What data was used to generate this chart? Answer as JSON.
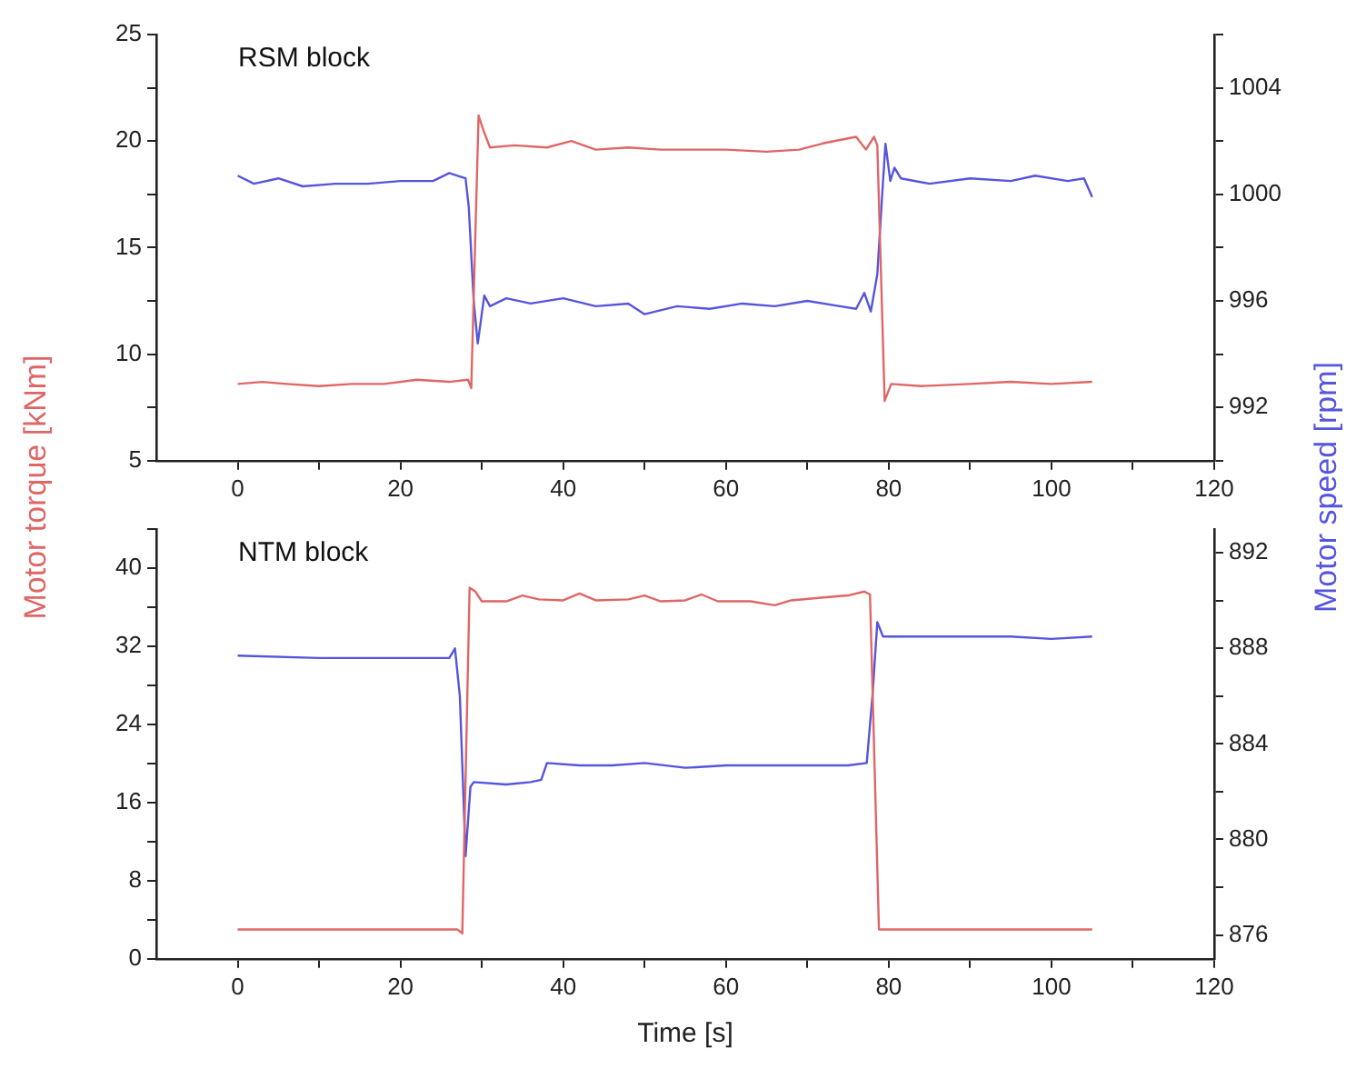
{
  "chart_data": [
    {
      "type": "line",
      "title": "RSM block",
      "xlim": [
        -10,
        120
      ],
      "xticks": [
        0,
        {
          "value": 10,
          "label": null
        },
        20,
        {
          "value": 30,
          "label": null
        },
        40,
        {
          "value": 50,
          "label": null
        },
        60,
        {
          "value": 70,
          "label": null
        },
        80,
        {
          "value": 90,
          "label": null
        },
        100,
        {
          "value": 110,
          "label": null
        },
        120
      ],
      "ylim": [
        5,
        25
      ],
      "yticks": [
        5,
        {
          "value": 7.5,
          "label": null
        },
        10,
        {
          "value": 12.5,
          "label": null
        },
        15,
        {
          "value": 17.5,
          "label": null
        },
        20,
        {
          "value": 22.5,
          "label": null
        },
        25
      ],
      "y2lim": [
        990,
        1006
      ],
      "y2ticks": [
        {
          "value": 990,
          "label": null
        },
        992,
        {
          "value": 994,
          "label": null
        },
        996,
        {
          "value": 998,
          "label": null
        },
        1000,
        {
          "value": 1002,
          "label": null
        },
        1004,
        {
          "value": 1006,
          "label": null
        }
      ],
      "grid": false,
      "marker": "none",
      "line_style": "solid",
      "series": [
        {
          "color": "#e06666",
          "axis": "y",
          "x": [
            0,
            3,
            6,
            10,
            14,
            18,
            22,
            26,
            28.3,
            28.7,
            29.6,
            30.2,
            31,
            34,
            38,
            41,
            44,
            48,
            52,
            56,
            60,
            65,
            69,
            72,
            76,
            77.2,
            78.2,
            78.6,
            79.5,
            80.3,
            84,
            90,
            95,
            100,
            105
          ],
          "values": [
            8.6,
            8.7,
            8.6,
            8.5,
            8.6,
            8.6,
            8.8,
            8.7,
            8.8,
            8.4,
            21.2,
            20.5,
            19.7,
            19.8,
            19.7,
            20.0,
            19.6,
            19.7,
            19.6,
            19.6,
            19.6,
            19.5,
            19.6,
            19.9,
            20.2,
            19.6,
            20.2,
            19.8,
            7.8,
            8.6,
            8.5,
            8.6,
            8.7,
            8.6,
            8.7
          ]
        },
        {
          "color": "#5555dd",
          "axis": "y2",
          "x": [
            0,
            2,
            5,
            8,
            12,
            16,
            20,
            24,
            26,
            28,
            28.4,
            29,
            29.5,
            30.3,
            31,
            33,
            36,
            40,
            44,
            48,
            50,
            54,
            58,
            62,
            66,
            70,
            74,
            76,
            77,
            77.8,
            78.6,
            79.2,
            79.6,
            80.2,
            80.7,
            81.5,
            85,
            90,
            95,
            98,
            102,
            104,
            105
          ],
          "values": [
            1000.7,
            1000.4,
            1000.6,
            1000.3,
            1000.4,
            1000.4,
            1000.5,
            1000.5,
            1000.8,
            1000.6,
            999.5,
            996,
            994.4,
            996.2,
            995.8,
            996.1,
            995.9,
            996.1,
            995.8,
            995.9,
            995.5,
            995.8,
            995.7,
            995.9,
            995.8,
            996,
            995.8,
            995.7,
            996.3,
            995.6,
            997,
            1000,
            1001.9,
            1000.5,
            1001,
            1000.6,
            1000.4,
            1000.6,
            1000.5,
            1000.7,
            1000.5,
            1000.6,
            999.9
          ]
        }
      ]
    },
    {
      "type": "line",
      "title": "NTM block",
      "xlabel": "Time [s]",
      "ylabel": "Motor torque [kNm]",
      "y2label": "Motor speed [rpm]",
      "xlim": [
        -10,
        120
      ],
      "xticks": [
        0,
        {
          "value": 10,
          "label": null
        },
        20,
        {
          "value": 30,
          "label": null
        },
        40,
        {
          "value": 50,
          "label": null
        },
        60,
        {
          "value": 70,
          "label": null
        },
        80,
        {
          "value": 90,
          "label": null
        },
        100,
        {
          "value": 110,
          "label": null
        },
        120
      ],
      "ylim": [
        0,
        44
      ],
      "yticks": [
        0,
        {
          "value": 4,
          "label": null
        },
        8,
        {
          "value": 12,
          "label": null
        },
        16,
        {
          "value": 20,
          "label": null
        },
        24,
        {
          "value": 28,
          "label": null
        },
        32,
        {
          "value": 36,
          "label": null
        },
        40,
        {
          "value": 44,
          "label": null
        }
      ],
      "y2lim": [
        875,
        893
      ],
      "y2ticks": [
        876,
        {
          "value": 878,
          "label": null
        },
        880,
        {
          "value": 882,
          "label": null
        },
        884,
        {
          "value": 886,
          "label": null
        },
        888,
        {
          "value": 890,
          "label": null
        },
        892
      ],
      "grid": false,
      "marker": "none",
      "line_style": "solid",
      "series": [
        {
          "color": "#e06666",
          "axis": "y",
          "x": [
            0,
            10,
            20,
            27,
            27.6,
            28.5,
            29.2,
            30,
            33,
            35,
            37,
            40,
            42,
            44,
            48,
            50,
            52,
            55,
            57,
            59,
            63,
            66,
            68,
            72,
            75,
            77,
            77.7,
            78.8,
            80,
            90,
            100,
            105
          ],
          "values": [
            3,
            3,
            3,
            3,
            2.6,
            38,
            37.6,
            36.6,
            36.6,
            37.2,
            36.8,
            36.7,
            37.4,
            36.7,
            36.8,
            37.2,
            36.6,
            36.7,
            37.3,
            36.6,
            36.6,
            36.2,
            36.7,
            37,
            37.2,
            37.6,
            37.3,
            3,
            3,
            3,
            3,
            3
          ]
        },
        {
          "color": "#5555dd",
          "axis": "y2",
          "x": [
            0,
            10,
            20,
            26,
            26.7,
            27.3,
            28,
            28.6,
            29,
            33,
            36,
            37.3,
            38,
            42,
            46,
            50,
            55,
            60,
            65,
            70,
            75,
            77.3,
            78,
            78.6,
            79.3,
            85,
            95,
            100,
            105
          ],
          "values": [
            887.7,
            887.6,
            887.6,
            887.6,
            888,
            886,
            879.3,
            882.2,
            882.4,
            882.3,
            882.4,
            882.5,
            883.2,
            883.1,
            883.1,
            883.2,
            883,
            883.1,
            883.1,
            883.1,
            883.1,
            883.2,
            886,
            889.1,
            888.5,
            888.5,
            888.5,
            888.4,
            888.5
          ]
        }
      ]
    }
  ]
}
